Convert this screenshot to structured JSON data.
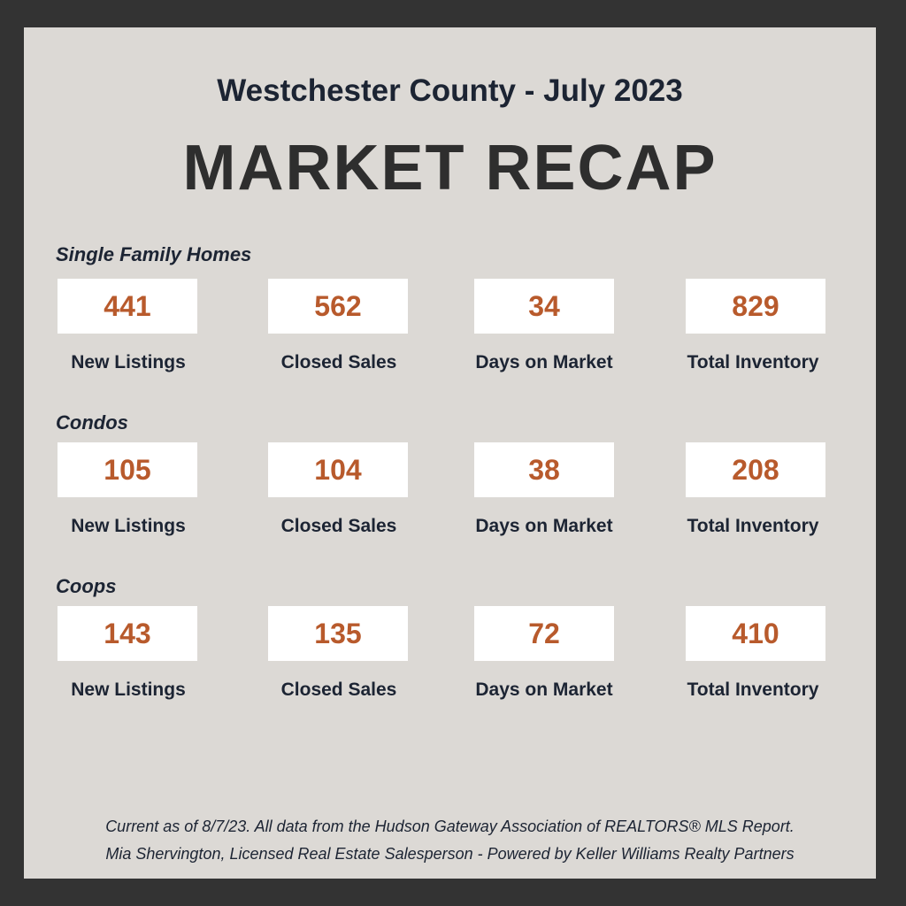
{
  "header": {
    "subtitle": "Westchester County - July 2023",
    "title": "MARKET RECAP"
  },
  "sections": [
    {
      "label": "Single Family Homes",
      "stats": [
        {
          "value": "441",
          "label": "New Listings"
        },
        {
          "value": "562",
          "label": "Closed Sales"
        },
        {
          "value": "34",
          "label": "Days on Market"
        },
        {
          "value": "829",
          "label": "Total Inventory"
        }
      ]
    },
    {
      "label": "Condos",
      "stats": [
        {
          "value": "105",
          "label": "New Listings"
        },
        {
          "value": "104",
          "label": "Closed Sales"
        },
        {
          "value": "38",
          "label": "Days on Market"
        },
        {
          "value": "208",
          "label": "Total Inventory"
        }
      ]
    },
    {
      "label": "Coops",
      "stats": [
        {
          "value": "143",
          "label": "New Listings"
        },
        {
          "value": "135",
          "label": "Closed Sales"
        },
        {
          "value": "72",
          "label": "Days on Market"
        },
        {
          "value": "410",
          "label": "Total Inventory"
        }
      ]
    }
  ],
  "footer": {
    "line1": "Current as of 8/7/23. All data from the Hudson Gateway Association of REALTORS® MLS Report.",
    "line2": "Mia Shervington, Licensed Real Estate Salesperson - Powered by Keller Williams Realty Partners"
  },
  "colors": {
    "frame": "#333333",
    "panel": "#dcd9d5",
    "value": "#b85a2c",
    "text": "#1c2433"
  }
}
